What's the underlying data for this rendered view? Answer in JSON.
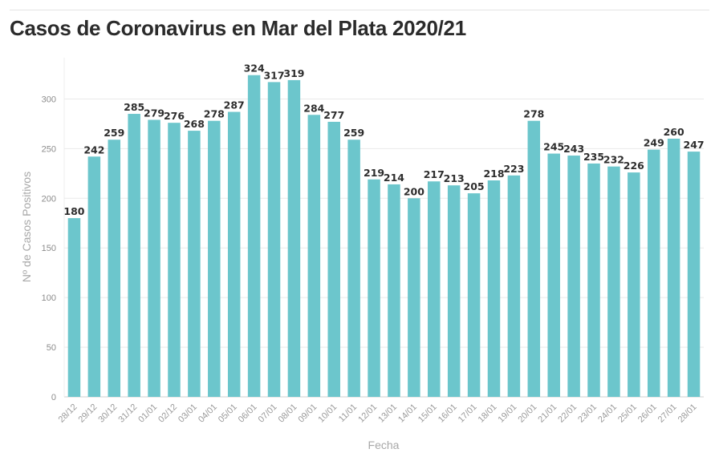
{
  "title": "Casos de Coronavirus en Mar del Plata 2020/21",
  "colors": {
    "bar": "#6cc6cc",
    "grid": "#e9e9e9",
    "axis": "#cfcfcf"
  },
  "chart_data": {
    "type": "bar",
    "title": "Casos de Coronavirus en Mar del Plata 2020/21",
    "xlabel": "Fecha",
    "ylabel": "Nº de Casos Positivos",
    "ylim": [
      0,
      340
    ],
    "yticks": [
      0,
      50,
      100,
      150,
      200,
      250,
      300
    ],
    "grid": true,
    "categories": [
      "28/12",
      "29/12",
      "30/12",
      "31/12",
      "01/01",
      "02/12",
      "03/01",
      "04/01",
      "05/01",
      "06/01",
      "07/01",
      "08/01",
      "09/01",
      "10/01",
      "11/01",
      "12/01",
      "13/01",
      "14/01",
      "15/01",
      "16/01",
      "17/01",
      "18/01",
      "19/01",
      "20/01",
      "21/01",
      "22/01",
      "23/01",
      "24/01",
      "25/01",
      "26/01",
      "27/01",
      "28/01"
    ],
    "values": [
      180,
      242,
      259,
      285,
      279,
      276,
      268,
      278,
      287,
      324,
      317,
      319,
      284,
      277,
      259,
      219,
      214,
      200,
      217,
      213,
      205,
      218,
      223,
      278,
      245,
      243,
      235,
      232,
      226,
      249,
      260,
      247
    ]
  }
}
